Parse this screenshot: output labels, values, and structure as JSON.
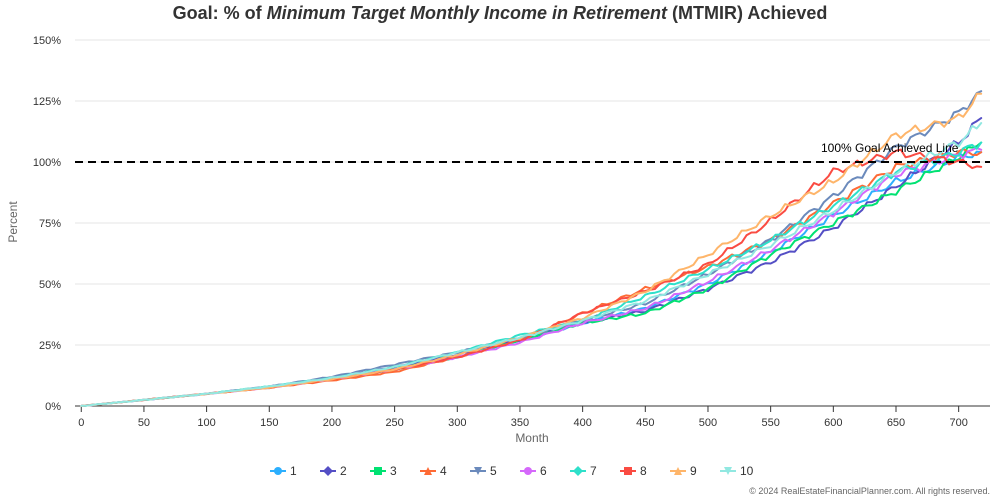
{
  "chart_data": {
    "type": "line",
    "title": {
      "prefix": "Goal: % of ",
      "emphasis": "Minimum Target Monthly Income in Retirement",
      "suffix": " (MTMIR) Achieved"
    },
    "xlabel": "Month",
    "ylabel": "Percent",
    "xlim": [
      -5,
      725
    ],
    "ylim": [
      0,
      150
    ],
    "x_ticks": [
      "0",
      "50",
      "100",
      "150",
      "200",
      "250",
      "300",
      "350",
      "400",
      "450",
      "500",
      "550",
      "600",
      "650",
      "700"
    ],
    "y_ticks": [
      "0%",
      "25%",
      "50%",
      "75%",
      "100%",
      "125%",
      "150%"
    ],
    "grid": true,
    "legend_position": "bottom",
    "reference_line": {
      "y": 100,
      "label": "100% Goal Achieved Line",
      "style": "dashed",
      "color": "#000000"
    },
    "credit": "© 2024 RealEstateFinancialPlanner.com. All rights reserved.",
    "x_points": [
      0,
      50,
      100,
      150,
      200,
      250,
      300,
      350,
      400,
      450,
      500,
      550,
      600,
      650,
      700,
      718
    ],
    "series": [
      {
        "name": "1",
        "color": "#2caffe",
        "marker": "circle",
        "values": [
          0,
          2.5,
          5,
          7.5,
          11,
          15,
          20,
          27,
          34,
          40,
          50,
          63,
          78,
          92,
          102,
          104
        ]
      },
      {
        "name": "2",
        "color": "#544fc5",
        "marker": "diamond",
        "values": [
          0,
          2.5,
          5,
          8,
          11.5,
          16,
          21,
          27,
          34,
          39,
          48,
          59,
          73,
          90,
          108,
          118
        ]
      },
      {
        "name": "3",
        "color": "#00e272",
        "marker": "square",
        "values": [
          0,
          2.5,
          5,
          8,
          11,
          15,
          20,
          27,
          34,
          38,
          48,
          62,
          75,
          88,
          102,
          108
        ]
      },
      {
        "name": "4",
        "color": "#fe6a35",
        "marker": "triangle",
        "values": [
          0,
          2.5,
          5,
          7.5,
          10.5,
          14,
          20,
          27,
          38,
          48,
          57,
          68,
          83,
          98,
          104,
          104
        ]
      },
      {
        "name": "5",
        "color": "#6b8abc",
        "marker": "triangle-down",
        "values": [
          0,
          2.5,
          5,
          8,
          12,
          17,
          22,
          28,
          35,
          42,
          54,
          68,
          86,
          106,
          120,
          129
        ]
      },
      {
        "name": "6",
        "color": "#d568fb",
        "marker": "circle",
        "values": [
          0,
          2.5,
          5,
          7.5,
          11,
          15,
          20,
          26,
          34,
          40,
          51,
          64,
          79,
          95,
          103,
          105
        ]
      },
      {
        "name": "7",
        "color": "#2ee0ca",
        "marker": "diamond",
        "values": [
          0,
          2.5,
          5,
          8,
          11.5,
          16,
          22,
          29,
          35,
          45,
          56,
          68,
          82,
          96,
          104,
          108
        ]
      },
      {
        "name": "8",
        "color": "#fa4b42",
        "marker": "square",
        "values": [
          0,
          2.5,
          5,
          7.5,
          11,
          15,
          20,
          27,
          38,
          47,
          58,
          76,
          96,
          104,
          100,
          98
        ]
      },
      {
        "name": "9",
        "color": "#feb56a",
        "marker": "triangle",
        "values": [
          0,
          2.5,
          5,
          7.5,
          11,
          15,
          21,
          28,
          36,
          47,
          62,
          78,
          92,
          111,
          118,
          128
        ]
      },
      {
        "name": "10",
        "color": "#91e8e1",
        "marker": "triangle-down",
        "values": [
          0,
          2.5,
          5,
          8,
          11.5,
          16,
          22,
          28,
          35,
          43,
          54,
          66,
          80,
          96,
          108,
          116
        ]
      }
    ]
  }
}
